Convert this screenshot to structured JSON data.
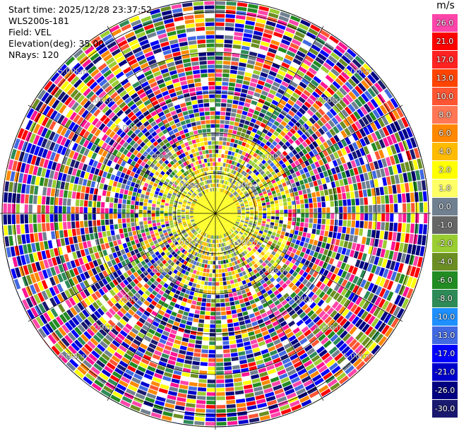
{
  "header": {
    "start_time": "Start time: 2025/12/28 23:37:52",
    "instrument": "WLS200s-181",
    "field": "Field: VEL",
    "elevation": "Elevation(deg): 35.00",
    "nrays": "NRays: 120"
  },
  "chart_data": {
    "type": "heatmap",
    "projection": "polar-ppi",
    "field": "VEL",
    "rays": 120,
    "range_rings_km": [
      1,
      2,
      3,
      4,
      5
    ],
    "ring_labels": [
      "1.00km",
      "2.00km",
      "3.00km",
      "4.00km",
      "5.00km"
    ],
    "max_range_km": 5.3,
    "near_field_km": 1.0,
    "colorbar": {
      "unit": "m/s",
      "bins": [
        {
          "label": "26.0",
          "color": "#ff44aa"
        },
        {
          "label": "21.0",
          "color": "#ff0000"
        },
        {
          "label": "17.0",
          "color": "#ff2222"
        },
        {
          "label": "13.0",
          "color": "#ff4400"
        },
        {
          "label": "10.0",
          "color": "#ff5533"
        },
        {
          "label": "8.0",
          "color": "#ff7755"
        },
        {
          "label": "6.0",
          "color": "#ff8800"
        },
        {
          "label": "4.0",
          "color": "#ffbb00"
        },
        {
          "label": "2.0",
          "color": "#ffff00"
        },
        {
          "label": "1.0",
          "color": "#ffff66"
        },
        {
          "label": "0.0",
          "color": "#708090"
        },
        {
          "label": "-1.0",
          "color": "#666666"
        },
        {
          "label": "-2.0",
          "color": "#9acd32"
        },
        {
          "label": "-4.0",
          "color": "#6b8e23"
        },
        {
          "label": "-6.0",
          "color": "#228b22"
        },
        {
          "label": "-8.0",
          "color": "#2e8b57"
        },
        {
          "label": "-10.0",
          "color": "#1e90ff"
        },
        {
          "label": "-13.0",
          "color": "#4169e1"
        },
        {
          "label": "-17.0",
          "color": "#0000ff"
        },
        {
          "label": "-21.0",
          "color": "#0000cd"
        },
        {
          "label": "-26.0",
          "color": "#000080"
        },
        {
          "label": "-30.0",
          "color": "#191970"
        }
      ]
    },
    "noise_palette": [
      "#ff1493",
      "#ff0000",
      "#0000cd",
      "#191970",
      "#ff8800",
      "#ffff00",
      "#228b22",
      "#2e8b57",
      "#ff44aa",
      "#000080",
      "#4169e1",
      "#708090",
      "#9acd32",
      "#6b8e23",
      "#ffffff",
      "#0000ff",
      "#ff5533"
    ],
    "near_palette": [
      "#ffff00",
      "#ffff66",
      "#708090",
      "#9acd32",
      "#ffbb00"
    ]
  }
}
